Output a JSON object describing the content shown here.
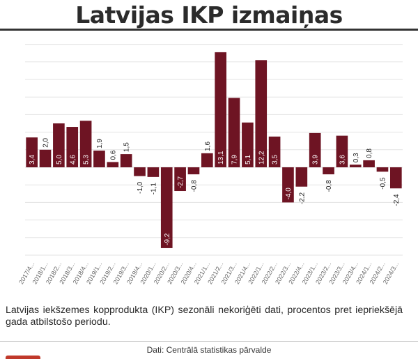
{
  "header": {
    "title": "Latvijas IKP izmaiņas"
  },
  "chart_data": {
    "type": "bar",
    "title": "Latvijas IKP izmaiņas",
    "categories": [
      "2017/4...",
      "2018/1...",
      "2018/2...",
      "2018/3...",
      "2018/4...",
      "2019/1...",
      "2019/2...",
      "2019/3...",
      "2019/4...",
      "2020/1...",
      "2020/2...",
      "2020/3...",
      "2020/4...",
      "2021/1...",
      "2021/2...",
      "2021/3...",
      "2021/4...",
      "2022/1...",
      "2022/2...",
      "2022/3...",
      "2022/4...",
      "2023/1...",
      "2023/2...",
      "2023/3...",
      "2023/4...",
      "2024/1...",
      "2024/2...",
      "2024/3..."
    ],
    "values": [
      3.4,
      2.0,
      5.0,
      4.6,
      5.3,
      1.9,
      0.6,
      1.5,
      -1.0,
      -1.1,
      -9.2,
      -2.7,
      -0.8,
      1.6,
      13.1,
      7.9,
      5.1,
      12.2,
      3.5,
      -4.0,
      -2.2,
      3.9,
      -0.8,
      3.6,
      0.3,
      0.8,
      -0.5,
      -2.4
    ],
    "labels": [
      "3,4",
      "2,0",
      "5,0",
      "4,6",
      "5,3",
      "1,9",
      "0,6",
      "1,5",
      "-1,0",
      "-1,1",
      "-9,2",
      "-2,7",
      "-0,8",
      "1,6",
      "13,1",
      "7,9",
      "5,1",
      "12,2",
      "3,5",
      "-4,0",
      "-2,2",
      "3,9",
      "-0,8",
      "3,6",
      "0,3",
      "0,8",
      "-0,5",
      "-2,4"
    ],
    "ylim": [
      -10,
      14
    ],
    "ytick_step": 2,
    "grid": true,
    "bar_color": "#6e1423",
    "xlabel": "",
    "ylabel": ""
  },
  "caption": "Latvijas iekšzemes kopprodukta (IKP) sezonāli nekoriģēti dati, procentos pret iepriekšējā gada atbilstošo periodu.",
  "source": "Dati: Centrālā statistikas pārvalde",
  "colors": {
    "accent": "#c0392b",
    "grid": "#e3e3e3",
    "axis_text": "#666666"
  }
}
